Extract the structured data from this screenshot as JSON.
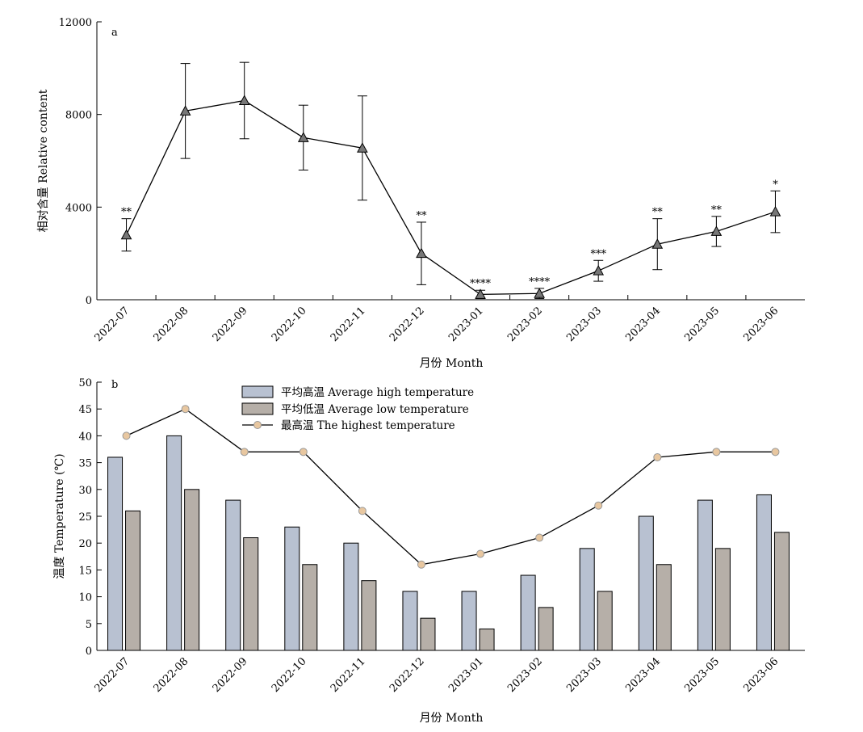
{
  "chart_data": [
    {
      "type": "line",
      "panel_label": "a",
      "title": "",
      "xlabel": "月份 Month",
      "ylabel": "相对含量 Relative content",
      "ylim": [
        0,
        12000
      ],
      "yticks": [
        0,
        4000,
        8000,
        12000
      ],
      "categories": [
        "2022-07",
        "2022-08",
        "2022-09",
        "2022-10",
        "2022-11",
        "2022-12",
        "2023-01",
        "2023-02",
        "2023-03",
        "2023-04",
        "2023-05",
        "2023-06"
      ],
      "series": [
        {
          "values": [
            2800,
            8150,
            8600,
            7000,
            6550,
            2000,
            230,
            270,
            1250,
            2400,
            2950,
            3800
          ],
          "error": [
            700,
            2050,
            1650,
            1400,
            2250,
            1350,
            180,
            220,
            450,
            1100,
            650,
            900
          ],
          "significance": [
            "**",
            "",
            "",
            "",
            "",
            "**",
            "****",
            "****",
            "***",
            "**",
            "**",
            "*"
          ]
        }
      ],
      "grid": false,
      "marker": "triangle",
      "marker_color": "#777777"
    },
    {
      "type": "bar",
      "panel_label": "b",
      "title": "",
      "xlabel": "月份 Month",
      "ylabel": "温度 Temperature (℃)",
      "ylim": [
        0,
        50
      ],
      "yticks": [
        0,
        5,
        10,
        15,
        20,
        25,
        30,
        35,
        40,
        45,
        50
      ],
      "categories": [
        "2022-07",
        "2022-08",
        "2022-09",
        "2022-10",
        "2022-11",
        "2022-12",
        "2023-01",
        "2023-02",
        "2023-03",
        "2023-04",
        "2023-05",
        "2023-06"
      ],
      "series": [
        {
          "name": "平均高温 Average high temperature",
          "type": "bar",
          "color": "#b8c1d1",
          "values": [
            36,
            40,
            28,
            23,
            20,
            11,
            11,
            14,
            19,
            25,
            28,
            29
          ]
        },
        {
          "name": "平均低温 Average low temperature",
          "type": "bar",
          "color": "#b6afa8",
          "values": [
            26,
            30,
            21,
            16,
            13,
            6,
            4,
            8,
            11,
            16,
            19,
            22
          ]
        },
        {
          "name": "最高温 The highest temperature",
          "type": "line",
          "color": "#e8c7a0",
          "values": [
            40,
            45,
            37,
            37,
            26,
            16,
            18,
            21,
            27,
            36,
            37,
            37
          ]
        }
      ],
      "grid": false,
      "legend_position": "top-center"
    }
  ]
}
